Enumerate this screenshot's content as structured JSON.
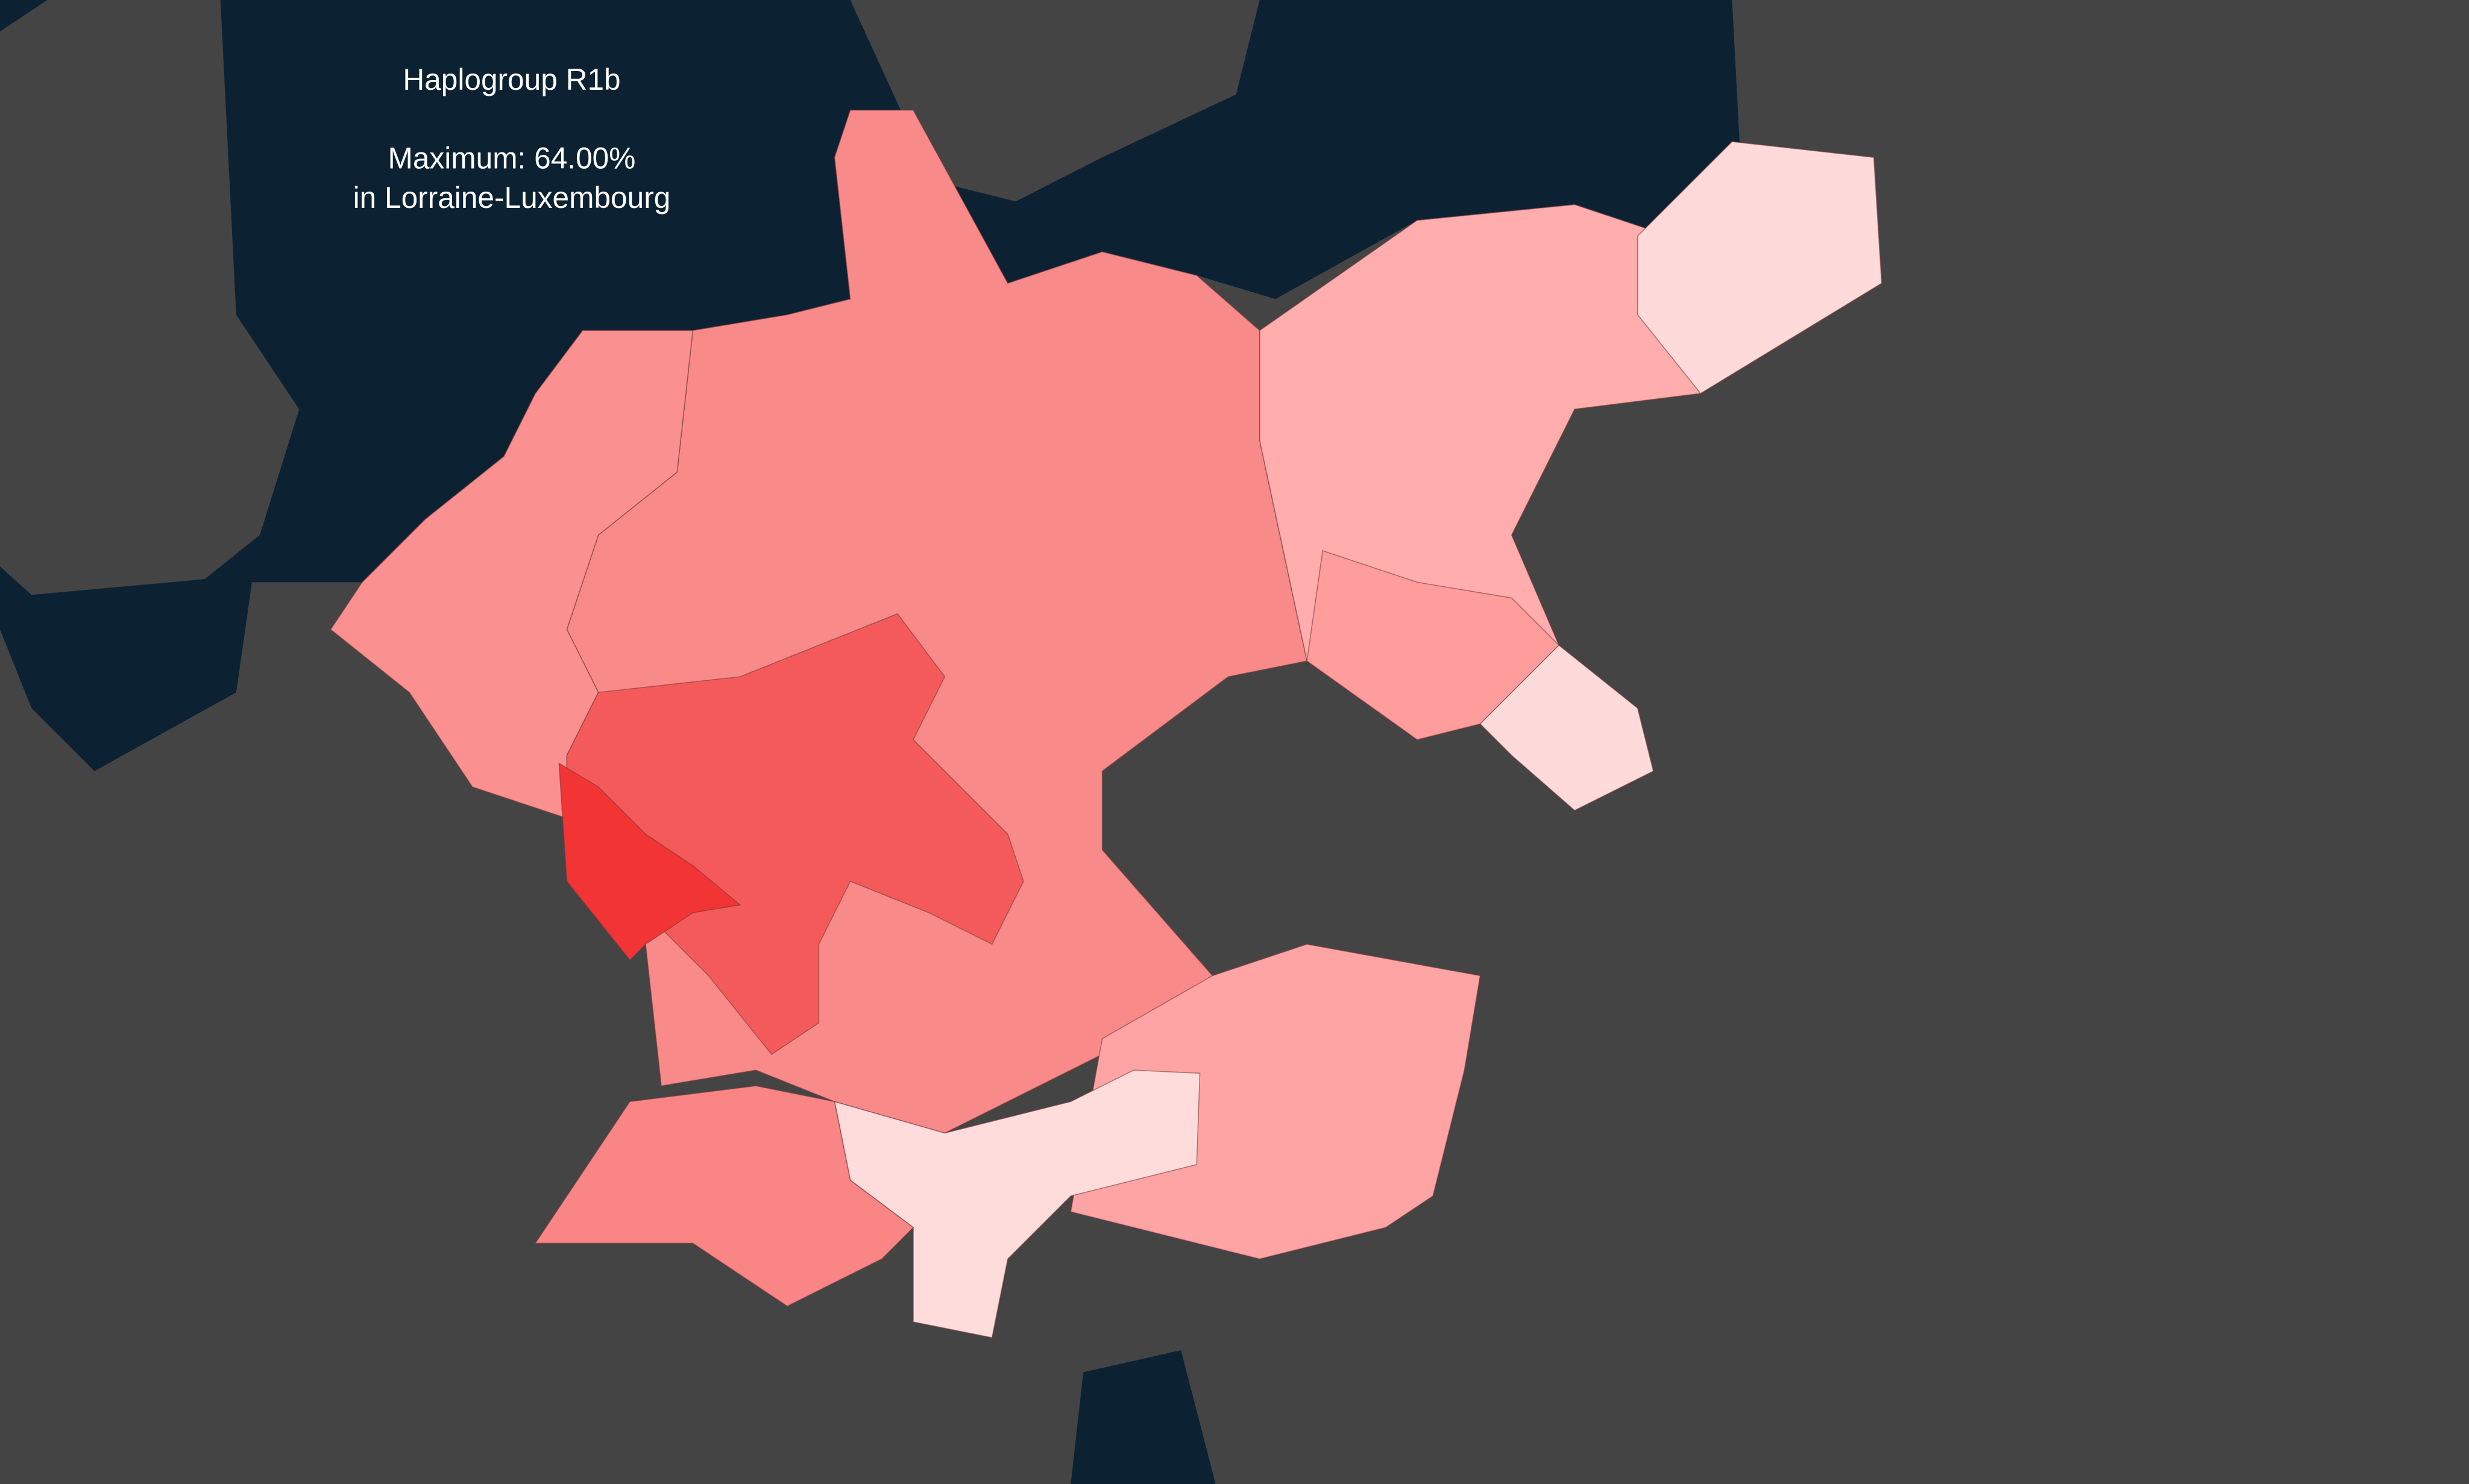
{
  "title": "Haplogroup R1b",
  "maximum": "Maximum: 64.00%",
  "location": "in Lorraine-Luxembourg"
}
